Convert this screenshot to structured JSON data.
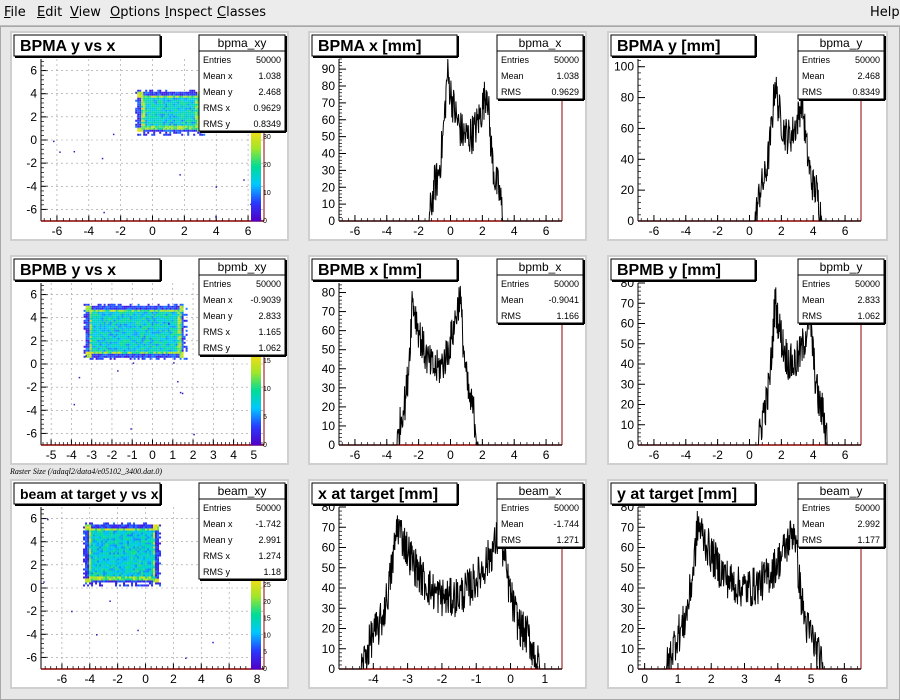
{
  "menu": {
    "items": [
      {
        "label": "File",
        "key": "F"
      },
      {
        "label": "Edit",
        "key": "E"
      },
      {
        "label": "View",
        "key": "V"
      },
      {
        "label": "Options",
        "key": "O"
      },
      {
        "label": "Inspect",
        "key": "I"
      },
      {
        "label": "Classes",
        "key": "C"
      }
    ],
    "help": "Help"
  },
  "middle_caption": "Raster Size (/adaql2/data4/e05102_3400.dat.0)",
  "colors": {
    "line": "#000000",
    "axis_bottom": "#8b0000",
    "box_bg": "#ffffff",
    "stat_bg": "#ffffff"
  },
  "chart_data": [
    {
      "type": "heatmap",
      "title": "BPMA y vs x",
      "stats_name": "bpma_xy",
      "stats": [
        [
          "Entries",
          "50000"
        ],
        [
          "Mean x",
          "1.038"
        ],
        [
          "Mean y",
          "2.468"
        ],
        [
          "RMS x",
          "0.9629"
        ],
        [
          "RMS y",
          "0.8349"
        ]
      ],
      "xlim": [
        -7,
        7
      ],
      "ylim": [
        -7,
        7
      ],
      "xticks": [
        "-6",
        "-4",
        "-2",
        "0",
        "2",
        "4",
        "6"
      ],
      "yticks": [
        "6",
        "4",
        "2",
        "0",
        "-2",
        "-4",
        "-6"
      ],
      "blob": {
        "cx": 1.04,
        "cy": 2.47,
        "hw": 2.0,
        "hh": 1.7
      },
      "palette_ticks": [
        "30",
        "20",
        "10",
        "0"
      ]
    },
    {
      "type": "bar",
      "title": "BPMA x [mm]",
      "stats_name": "bpma_x",
      "stats": [
        [
          "Entries",
          "50000"
        ],
        [
          "Mean",
          "1.038"
        ],
        [
          "RMS",
          "0.9629"
        ]
      ],
      "xlim": [
        -7,
        7
      ],
      "ylim": [
        0,
        96
      ],
      "xticks": [
        "-6",
        "-4",
        "-2",
        "0",
        "2",
        "4",
        "6"
      ],
      "yticks": [
        "0",
        "10",
        "20",
        "30",
        "40",
        "50",
        "60",
        "70",
        "80",
        "90"
      ],
      "profile": {
        "lo": -1.0,
        "hi": 3.0,
        "peak1": -0.2,
        "peak2": 2.3,
        "h1": 88,
        "h2": 80,
        "mid": 50,
        "noise": 12
      }
    },
    {
      "type": "bar",
      "title": "BPMA y [mm]",
      "stats_name": "bpma_y",
      "stats": [
        [
          "Entries",
          "50000"
        ],
        [
          "Mean",
          "2.468"
        ],
        [
          "RMS",
          "0.8349"
        ]
      ],
      "xlim": [
        -7,
        7
      ],
      "ylim": [
        0,
        105
      ],
      "xticks": [
        "-6",
        "-4",
        "-2",
        "0",
        "2",
        "4",
        "6"
      ],
      "yticks": [
        "0",
        "20",
        "40",
        "60",
        "80",
        "100"
      ],
      "profile": {
        "lo": 0.7,
        "hi": 4.2,
        "peak1": 1.6,
        "peak2": 3.3,
        "h1": 90,
        "h2": 80,
        "mid": 55,
        "noise": 12
      }
    },
    {
      "type": "heatmap",
      "title": "BPMB y vs x",
      "stats_name": "bpmb_xy",
      "stats": [
        [
          "Entries",
          "50000"
        ],
        [
          "Mean x",
          "-0.9039"
        ],
        [
          "Mean y",
          "2.833"
        ],
        [
          "RMS x",
          "1.165"
        ],
        [
          "RMS y",
          "1.062"
        ]
      ],
      "xlim": [
        -5.5,
        5.5
      ],
      "ylim": [
        -7,
        7
      ],
      "xticks": [
        "-5",
        "-4",
        "-3",
        "-2",
        "-1",
        "0",
        "1",
        "2",
        "3",
        "4",
        "5"
      ],
      "yticks": [
        "6",
        "4",
        "2",
        "0",
        "-2",
        "-4",
        "-6"
      ],
      "blob": {
        "cx": -0.9,
        "cy": 2.83,
        "hw": 2.4,
        "hh": 2.2
      },
      "palette_ticks": [
        "15",
        "10",
        "5",
        "0"
      ]
    },
    {
      "type": "bar",
      "title": "BPMB x [mm]",
      "stats_name": "bpmb_x",
      "stats": [
        [
          "Entries",
          "50000"
        ],
        [
          "Mean",
          "-0.9041"
        ],
        [
          "RMS",
          "1.166"
        ]
      ],
      "xlim": [
        -7,
        7
      ],
      "ylim": [
        0,
        85
      ],
      "xticks": [
        "-6",
        "-4",
        "-2",
        "0",
        "2",
        "4",
        "6"
      ],
      "yticks": [
        "0",
        "10",
        "20",
        "30",
        "40",
        "50",
        "60",
        "70",
        "80"
      ],
      "profile": {
        "lo": -3.0,
        "hi": 1.4,
        "peak1": -2.4,
        "peak2": 0.6,
        "h1": 78,
        "h2": 80,
        "mid": 40,
        "noise": 10
      }
    },
    {
      "type": "bar",
      "title": "BPMB y [mm]",
      "stats_name": "bpmb_y",
      "stats": [
        [
          "Entries",
          "50000"
        ],
        [
          "Mean",
          "2.833"
        ],
        [
          "RMS",
          "1.062"
        ]
      ],
      "xlim": [
        -7,
        7
      ],
      "ylim": [
        0,
        80
      ],
      "xticks": [
        "-6",
        "-4",
        "-2",
        "0",
        "2",
        "4",
        "6"
      ],
      "yticks": [
        "0",
        "10",
        "20",
        "30",
        "40",
        "50",
        "60",
        "70",
        "80"
      ],
      "profile": {
        "lo": 0.9,
        "hi": 4.6,
        "peak1": 1.6,
        "peak2": 3.8,
        "h1": 72,
        "h2": 66,
        "mid": 40,
        "noise": 10
      }
    },
    {
      "type": "heatmap",
      "title": "beam at target y vs x",
      "stats_name": "beam_xy",
      "stats": [
        [
          "Entries",
          "50000"
        ],
        [
          "Mean x",
          "-1.742"
        ],
        [
          "Mean y",
          "2.991"
        ],
        [
          "RMS x",
          "1.274"
        ],
        [
          "RMS y",
          "1.18"
        ]
      ],
      "xlim": [
        -7.5,
        8.5
      ],
      "ylim": [
        -7,
        7
      ],
      "xticks": [
        "-6",
        "-4",
        "-2",
        "0",
        "2",
        "4",
        "6",
        "8"
      ],
      "yticks": [
        "6",
        "4",
        "2",
        "0",
        "-2",
        "-4",
        "-6"
      ],
      "blob": {
        "cx": -1.74,
        "cy": 2.99,
        "hw": 2.6,
        "hh": 2.5
      },
      "palette_ticks": [
        "25",
        "20",
        "15",
        "10",
        "5",
        "0"
      ]
    },
    {
      "type": "bar",
      "title": "x at target [mm]",
      "stats_name": "beam_x",
      "stats": [
        [
          "Entries",
          "50000"
        ],
        [
          "Mean",
          "-1.744"
        ],
        [
          "RMS",
          "1.271"
        ]
      ],
      "xlim": [
        -5,
        1.5
      ],
      "ylim": [
        0,
        80
      ],
      "xticks": [
        "-4",
        "-3",
        "-2",
        "-1",
        "0",
        "1"
      ],
      "yticks": [
        "0",
        "10",
        "20",
        "30",
        "40",
        "50",
        "60",
        "70",
        "80"
      ],
      "profile": {
        "lo": -4.0,
        "hi": 0.5,
        "peak1": -3.3,
        "peak2": -0.3,
        "h1": 72,
        "h2": 68,
        "mid": 35,
        "noise": 10
      }
    },
    {
      "type": "bar",
      "title": "y at target [mm]",
      "stats_name": "beam_y",
      "stats": [
        [
          "Entries",
          "50000"
        ],
        [
          "Mean",
          "2.992"
        ],
        [
          "RMS",
          "1.177"
        ]
      ],
      "xlim": [
        -0.2,
        6.5
      ],
      "ylim": [
        0,
        80
      ],
      "xticks": [
        "0",
        "1",
        "2",
        "3",
        "4",
        "5",
        "6"
      ],
      "yticks": [
        "0",
        "10",
        "20",
        "30",
        "40",
        "50",
        "60",
        "70",
        "80"
      ],
      "profile": {
        "lo": 1.0,
        "hi": 5.0,
        "peak1": 1.6,
        "peak2": 4.5,
        "h1": 72,
        "h2": 70,
        "mid": 40,
        "noise": 10
      }
    }
  ]
}
